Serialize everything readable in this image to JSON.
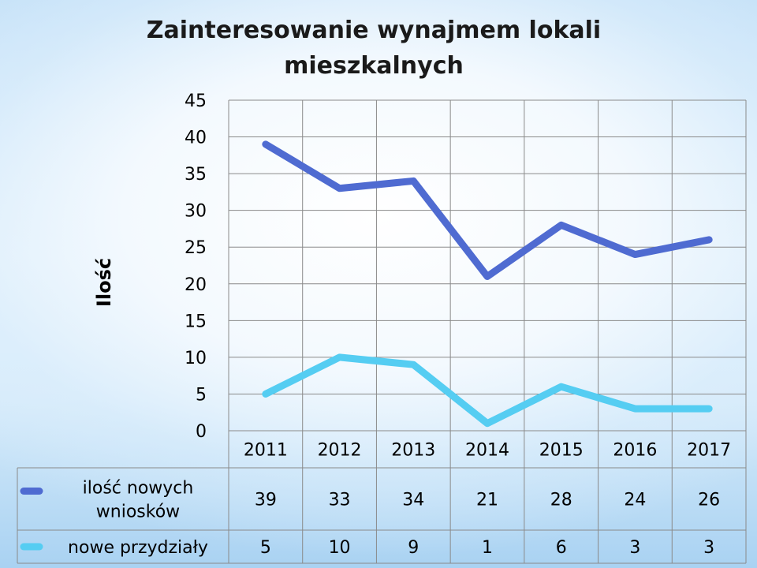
{
  "chart_data": {
    "type": "line",
    "title_lines": [
      "Zainteresowanie wynajmem lokali",
      "mieszkalnych"
    ],
    "ylabel": "Ilość",
    "xlabel": "",
    "categories": [
      "2011",
      "2012",
      "2013",
      "2014",
      "2015",
      "2016",
      "2017"
    ],
    "ylim": [
      0,
      45
    ],
    "yticks": [
      0,
      5,
      10,
      15,
      20,
      25,
      30,
      35,
      40,
      45
    ],
    "grid": true,
    "legend": "data-table",
    "series": [
      {
        "name_lines": [
          "ilość nowych",
          "wniosków"
        ],
        "values": [
          39,
          33,
          34,
          21,
          28,
          24,
          26
        ],
        "color": "#4f6bd1"
      },
      {
        "name_lines": [
          "nowe przydziały"
        ],
        "values": [
          5,
          10,
          9,
          1,
          6,
          3,
          3
        ],
        "color": "#55cdf2"
      }
    ]
  }
}
